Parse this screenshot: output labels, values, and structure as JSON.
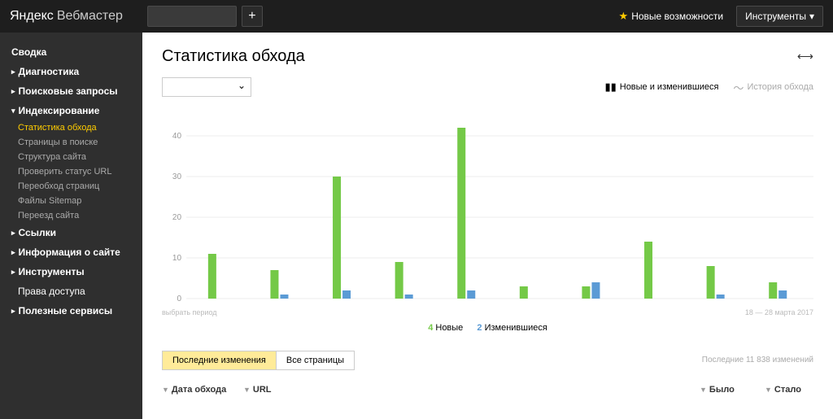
{
  "header": {
    "logo_yandex": "Яндекс",
    "logo_product": "Вебмастер",
    "add_label": "+",
    "new_features": "Новые возможности",
    "tools_label": "Инструменты"
  },
  "sidebar": {
    "summary": "Сводка",
    "diagnostics": "Диагностика",
    "search_queries": "Поисковые запросы",
    "indexing": "Индексирование",
    "indexing_children": {
      "crawl_stats": "Статистика обхода",
      "pages_in_search": "Страницы в поиске",
      "site_structure": "Структура сайта",
      "check_url": "Проверить статус URL",
      "recrawl": "Переобход страниц",
      "sitemap": "Файлы Sitemap",
      "move": "Переезд сайта"
    },
    "links": "Ссылки",
    "site_info": "Информация о сайте",
    "tools": "Инструменты",
    "access": "Права доступа",
    "services": "Полезные сервисы"
  },
  "page": {
    "title": "Статистика обхода",
    "toggle_new": "Новые и изменившиеся",
    "toggle_history": "История обхода"
  },
  "chart": {
    "type": "bar",
    "y_ticks": [
      0,
      10,
      20,
      30,
      40
    ],
    "y_max": 45,
    "background_color": "#ffffff",
    "grid_color": "#eeeeee",
    "series": {
      "new": {
        "label": "Новые",
        "color": "#74c947",
        "current": 4
      },
      "changed": {
        "label": "Изменившиеся",
        "color": "#5b9bd5",
        "current": 2
      }
    },
    "points": [
      {
        "new": 11,
        "changed": 0
      },
      {
        "new": 7,
        "changed": 1
      },
      {
        "new": 30,
        "changed": 2
      },
      {
        "new": 9,
        "changed": 1
      },
      {
        "new": 42,
        "changed": 2
      },
      {
        "new": 3,
        "changed": 0
      },
      {
        "new": 3,
        "changed": 4
      },
      {
        "new": 14,
        "changed": 0
      },
      {
        "new": 8,
        "changed": 1
      },
      {
        "new": 4,
        "changed": 2
      }
    ],
    "period_hint": "выбрать период",
    "date_range": "18 — 28 марта 2017"
  },
  "tabs": {
    "recent": "Последние изменения",
    "all": "Все страницы",
    "count_text": "Последние 11 838 изменений"
  },
  "table": {
    "col_date": "Дата обхода",
    "col_url": "URL",
    "col_was": "Было",
    "col_now": "Стало"
  }
}
